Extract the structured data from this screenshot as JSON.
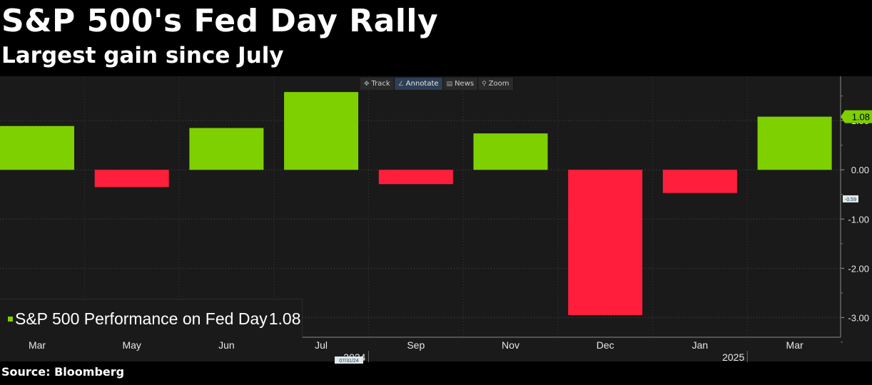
{
  "header": {
    "title": "S&P 500's Fed Day Rally",
    "subtitle": "Largest gain since July"
  },
  "toolbar": {
    "items": [
      {
        "label": "Track",
        "icon": "crosshair-icon"
      },
      {
        "label": "Annotate",
        "icon": "pencil-icon"
      },
      {
        "label": "News",
        "icon": "news-icon"
      },
      {
        "label": "Zoom",
        "icon": "magnifier-icon"
      }
    ]
  },
  "legend": {
    "label": "S&P 500 Performance on Fed Day",
    "value": "1.08"
  },
  "footer": {
    "source": "Source: Bloomberg"
  },
  "colors": {
    "positive": "#7ed000",
    "negative": "#ff1f3d",
    "background": "#000000",
    "plot_background": "#1a1a1a"
  },
  "chart_data": {
    "type": "bar",
    "title": "S&P 500's Fed Day Rally",
    "subtitle": "Largest gain since July",
    "categories": [
      "Mar",
      "May",
      "Jun",
      "Jul",
      "Sep",
      "Nov",
      "Dec",
      "Jan",
      "Mar"
    ],
    "year_labels": [
      {
        "after_category_index": 3,
        "label": "2024"
      },
      {
        "after_category_index": 7,
        "label": "2025"
      }
    ],
    "series": [
      {
        "name": "S&P 500 Performance on Fed Day",
        "values": [
          0.89,
          -0.35,
          0.85,
          1.58,
          -0.29,
          0.74,
          -2.95,
          -0.47,
          1.08
        ]
      }
    ],
    "ylim": [
      -3.4,
      1.9
    ],
    "yticks": [
      "1.00",
      "0.00",
      "-1.00",
      "-2.00",
      "-3.00"
    ],
    "ytick_values": [
      1.0,
      0.0,
      -1.0,
      -2.0,
      -3.0
    ],
    "last_value_label": "1.08",
    "secondary_marker_label": "-0.59",
    "x_marker_label": "07/31/24",
    "grid": true,
    "legend_position": "bottom-left"
  }
}
